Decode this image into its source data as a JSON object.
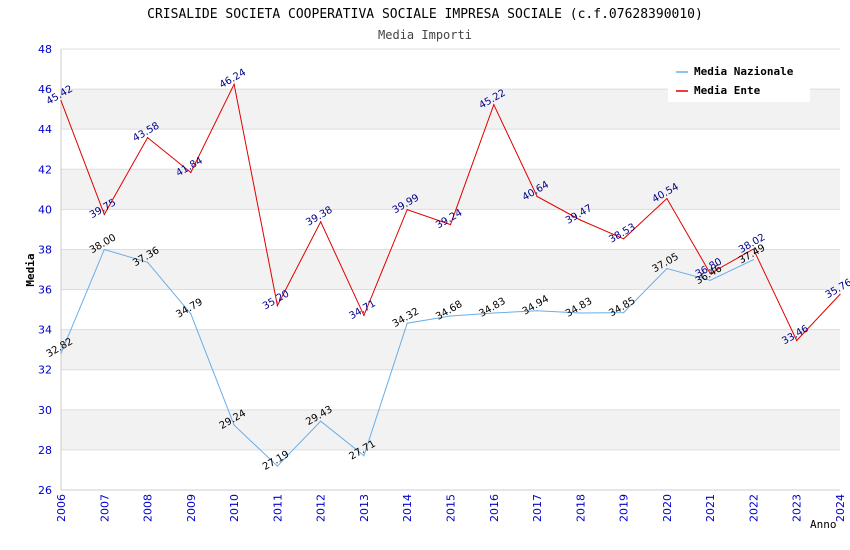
{
  "chart_data": {
    "type": "line",
    "title": "CRISALIDE SOCIETA COOPERATIVA SOCIALE IMPRESA SOCIALE (c.f.07628390010)",
    "subtitle": "Media Importi",
    "xlabel": "Anno",
    "ylabel": "Media",
    "ylim": [
      26,
      48
    ],
    "yticks": [
      "26",
      "28",
      "30",
      "32",
      "34",
      "36",
      "38",
      "40",
      "42",
      "44",
      "46",
      "48"
    ],
    "categories": [
      "2006",
      "2007",
      "2008",
      "2009",
      "2010",
      "2011",
      "2012",
      "2013",
      "2014",
      "2015",
      "2016",
      "2017",
      "2018",
      "2019",
      "2020",
      "2021",
      "2022",
      "2023",
      "2024"
    ],
    "legend_position": "top-right",
    "series": [
      {
        "name": "Media Nazionale",
        "color": "#6aaee8",
        "label_color": "#000000",
        "values": [
          32.82,
          38.0,
          37.36,
          34.79,
          29.24,
          27.19,
          29.43,
          27.71,
          34.32,
          34.68,
          34.83,
          34.94,
          34.83,
          34.85,
          37.05,
          36.46,
          37.49,
          null,
          null
        ],
        "labels": [
          "32.82",
          "38.00",
          "37.36",
          "34.79",
          "29.24",
          "27.19",
          "29.43",
          "27.71",
          "34.32",
          "34.68",
          "34.83",
          "34.94",
          "34.83",
          "34.85",
          "37.05",
          "36.46",
          "37.49",
          null,
          null
        ]
      },
      {
        "name": "Media Ente",
        "color": "#e00000",
        "label_color": "#00008b",
        "values": [
          45.42,
          39.75,
          43.58,
          41.84,
          46.24,
          35.2,
          39.38,
          34.71,
          39.99,
          39.24,
          45.22,
          40.64,
          39.47,
          38.53,
          40.54,
          36.8,
          38.02,
          33.46,
          35.76
        ],
        "labels": [
          "45.42",
          "39.75",
          "43.58",
          "41.84",
          "46.24",
          "35.20",
          "39.38",
          "34.71",
          "39.99",
          "39.24",
          "45.22",
          "40.64",
          "39.47",
          "38.53",
          "40.54",
          "36.80",
          "38.02",
          "33.46",
          "35.76"
        ]
      }
    ]
  }
}
